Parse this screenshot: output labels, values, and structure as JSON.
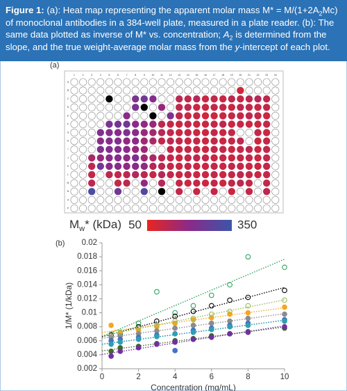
{
  "caption": [
    {
      "t": "Figure 1:",
      "s": "b"
    },
    {
      "t": " (a): Heat map representing the apparent molar mass M* = M/(1+2A"
    },
    {
      "t": "2",
      "s": "sub"
    },
    {
      "t": "Mc) of monoclonal antibodies in a 384-well plate, measured in a plate reader. (b): The same data plotted as inverse of M* vs. concentration; "
    },
    {
      "t": "A",
      "s": "i"
    },
    {
      "t": "2",
      "s": "sub"
    },
    {
      "t": " is determined from the slope, and the true weight-average molar mass from the "
    },
    {
      "t": "y",
      "s": "i"
    },
    {
      "t": "-intercept of each plot."
    }
  ],
  "chart_data": [
    {
      "type": "heatmap",
      "label": "(a)",
      "row_labels": [
        "A",
        "B",
        "C",
        "D",
        "E",
        "F",
        "G",
        "H",
        "I",
        "J",
        "K",
        "L",
        "M",
        "N",
        "O",
        "P"
      ],
      "col_labels": [
        "1",
        "2",
        "3",
        "4",
        "5",
        "6",
        "7",
        "8",
        "9",
        "10",
        "11",
        "12",
        "13",
        "14",
        "15",
        "16",
        "17",
        "18",
        "19",
        "20",
        "21",
        "22",
        "23",
        "24"
      ],
      "values": [
        [
          null,
          null,
          null,
          null,
          null,
          null,
          null,
          null,
          null,
          null,
          null,
          null,
          null,
          null,
          null,
          null,
          null,
          null,
          null,
          null,
          null,
          null,
          null,
          null
        ],
        [
          null,
          null,
          null,
          null,
          null,
          null,
          null,
          null,
          null,
          null,
          null,
          null,
          null,
          null,
          null,
          null,
          null,
          null,
          null,
          90,
          null,
          null,
          null,
          null
        ],
        [
          null,
          null,
          null,
          null,
          400,
          null,
          null,
          230,
          250,
          210,
          null,
          null,
          120,
          110,
          130,
          100,
          110,
          100,
          120,
          110,
          120,
          130,
          110,
          null
        ],
        [
          null,
          null,
          null,
          null,
          null,
          null,
          null,
          230,
          400,
          null,
          180,
          null,
          110,
          120,
          100,
          100,
          110,
          110,
          100,
          120,
          110,
          100,
          110,
          null
        ],
        [
          null,
          null,
          null,
          null,
          null,
          null,
          200,
          null,
          null,
          400,
          null,
          220,
          120,
          100,
          110,
          90,
          100,
          100,
          110,
          110,
          120,
          110,
          100,
          null
        ],
        [
          null,
          null,
          null,
          null,
          230,
          240,
          250,
          200,
          190,
          180,
          120,
          110,
          100,
          110,
          100,
          100,
          110,
          120,
          100,
          110,
          100,
          100,
          110,
          null
        ],
        [
          null,
          null,
          null,
          220,
          210,
          200,
          230,
          200,
          180,
          160,
          130,
          110,
          100,
          110,
          100,
          100,
          110,
          100,
          110,
          null,
          null,
          110,
          100,
          null
        ],
        [
          null,
          null,
          null,
          200,
          210,
          220,
          190,
          200,
          170,
          150,
          110,
          120,
          110,
          100,
          110,
          100,
          110,
          100,
          110,
          120,
          null,
          100,
          110,
          null
        ],
        [
          null,
          null,
          null,
          230,
          220,
          210,
          200,
          180,
          170,
          null,
          null,
          110,
          100,
          110,
          100,
          100,
          110,
          110,
          100,
          110,
          120,
          100,
          110,
          null
        ],
        [
          null,
          null,
          150,
          180,
          200,
          210,
          190,
          220,
          170,
          150,
          120,
          110,
          100,
          110,
          120,
          110,
          100,
          110,
          100,
          110,
          110,
          100,
          110,
          null
        ],
        [
          null,
          null,
          120,
          250,
          200,
          210,
          190,
          200,
          190,
          130,
          120,
          110,
          100,
          110,
          100,
          100,
          110,
          100,
          110,
          110,
          100,
          100,
          110,
          null
        ],
        [
          null,
          null,
          110,
          null,
          120,
          110,
          120,
          140,
          120,
          110,
          130,
          110,
          100,
          110,
          100,
          100,
          110,
          100,
          110,
          120,
          110,
          100,
          110,
          null
        ],
        [
          null,
          null,
          120,
          null,
          null,
          110,
          120,
          null,
          190,
          null,
          130,
          null,
          110,
          100,
          110,
          100,
          110,
          100,
          110,
          120,
          110,
          null,
          110,
          null
        ],
        [
          null,
          null,
          320,
          null,
          null,
          250,
          null,
          null,
          300,
          null,
          400,
          null,
          110,
          null,
          100,
          null,
          110,
          null,
          100,
          null,
          110,
          null,
          120,
          null
        ],
        [
          null,
          null,
          null,
          null,
          null,
          null,
          null,
          null,
          null,
          null,
          null,
          null,
          null,
          null,
          null,
          null,
          null,
          null,
          null,
          null,
          null,
          null,
          null,
          null
        ],
        [
          null,
          null,
          null,
          null,
          null,
          null,
          null,
          null,
          null,
          null,
          null,
          null,
          null,
          null,
          null,
          null,
          null,
          null,
          null,
          null,
          null,
          null,
          null,
          null
        ]
      ],
      "clim": [
        50,
        350
      ],
      "colorscale": [
        "#e8261e",
        "#8a2a8a",
        "#3b56a8"
      ],
      "over_color": "#000000",
      "colorbar_label": {
        "main": "M",
        "sub": "w",
        "rest": "* (kDa)"
      }
    },
    {
      "type": "scatter",
      "label": "(b)",
      "x_label": "Concentration (mg/mL)",
      "y_label": "1/M* (1/kDa)",
      "x": [
        0.5,
        1,
        2,
        3,
        4,
        5,
        6,
        7,
        8,
        10
      ],
      "xlim": [
        0,
        10
      ],
      "xticks": [
        0,
        2,
        4,
        6,
        8,
        10
      ],
      "ylim": [
        0.002,
        0.02
      ],
      "yticks": [
        0.002,
        0.004,
        0.006,
        0.008,
        0.01,
        0.012,
        0.014,
        0.016,
        0.018,
        0.02
      ],
      "trendline": true,
      "series": [
        {
          "color": "#2ca25f",
          "marker": "open",
          "values": [
            0.0068,
            0.0072,
            0.0085,
            0.013,
            0.01,
            0.011,
            0.0125,
            0.014,
            0.018,
            0.0165
          ]
        },
        {
          "color": "#000000",
          "marker": "open",
          "values": [
            0.0068,
            0.007,
            0.008,
            0.0088,
            0.0095,
            0.0102,
            0.011,
            0.0118,
            0.0122,
            0.0132
          ]
        },
        {
          "color": "#f5a623",
          "marker": "filled",
          "values": [
            0.0082,
            0.0072,
            0.0075,
            0.008,
            0.0085,
            0.009,
            0.0093,
            0.0098,
            0.01,
            0.0108
          ]
        },
        {
          "color": "#8c8c8c",
          "marker": "filled",
          "values": [
            0.0065,
            0.0067,
            0.007,
            0.0074,
            0.0078,
            0.0082,
            0.0085,
            0.0088,
            0.0092,
            0.0098
          ]
        },
        {
          "color": "#4472c4",
          "marker": "filled",
          "values": [
            0.006,
            0.0062,
            0.0065,
            0.0068,
            0.0046,
            0.0075,
            0.0078,
            0.0082,
            0.0085,
            0.009
          ]
        },
        {
          "color": "#3d6b2a",
          "marker": "filled",
          "values": [
            0.0045,
            0.005,
            0.0052,
            0.0056,
            0.006,
            0.0063,
            0.0067,
            0.007,
            0.0073,
            0.0078
          ]
        },
        {
          "color": "#7030a0",
          "marker": "filled",
          "values": [
            0.0038,
            0.0045,
            0.005,
            0.0055,
            0.0058,
            0.0062,
            0.0065,
            0.007,
            0.0072,
            0.008
          ]
        },
        {
          "color": "#2e9fb3",
          "marker": "filled",
          "values": [
            0.0055,
            0.0058,
            0.0062,
            0.0066,
            0.007,
            0.0072,
            0.0076,
            0.008,
            0.0082,
            0.0088
          ]
        },
        {
          "color": "#9bbb59",
          "marker": "open",
          "values": [
            0.007,
            0.0072,
            0.0078,
            0.0082,
            0.0088,
            0.0092,
            0.0098,
            0.0102,
            0.011,
            0.0118
          ]
        }
      ]
    }
  ]
}
